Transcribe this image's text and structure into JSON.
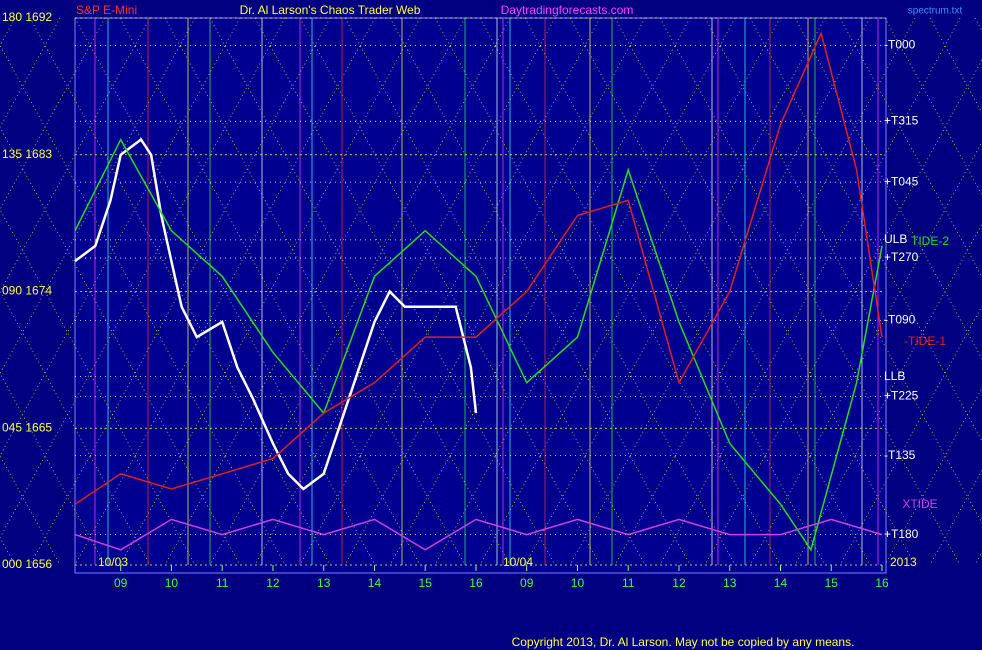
{
  "chart_data": {
    "type": "line",
    "title": "Dr. Al Larson's Chaos Trader Web",
    "website": "Daytradingforecasts.com",
    "file_label": "spectrum.txt",
    "copyright": "Copyright 2013, Dr. Al Larson. May not be copied by any means.",
    "date_labels": [
      "10/03",
      "10/04",
      "2013"
    ],
    "xlim": [
      0.1,
      16
    ],
    "xticks": [
      {
        "value": 1,
        "label": "09"
      },
      {
        "value": 2,
        "label": "10"
      },
      {
        "value": 3,
        "label": "11"
      },
      {
        "value": 4,
        "label": "12"
      },
      {
        "value": 5,
        "label": "13"
      },
      {
        "value": 6,
        "label": "14"
      },
      {
        "value": 7,
        "label": "15"
      },
      {
        "value": 8,
        "label": "16"
      },
      {
        "value": 9,
        "label": "09"
      },
      {
        "value": 10,
        "label": "10"
      },
      {
        "value": 11,
        "label": "11"
      },
      {
        "value": 12,
        "label": "12"
      },
      {
        "value": 13,
        "label": "13"
      },
      {
        "value": 14,
        "label": "14"
      },
      {
        "value": 15,
        "label": "15"
      },
      {
        "value": 16,
        "label": "16"
      }
    ],
    "ylim": [
      1656,
      1692
    ],
    "yticks": [
      {
        "value": 1692,
        "label": "180  1692"
      },
      {
        "value": 1683,
        "label": "135  1683"
      },
      {
        "value": 1674,
        "label": "090  1674"
      },
      {
        "value": 1665,
        "label": "045  1665"
      },
      {
        "value": 1656,
        "label": "000  1656"
      }
    ],
    "grid": true,
    "series": [
      {
        "name": "S&P E-Mini",
        "color": "#ffffff",
        "x": [
          0.1,
          0.5,
          0.8,
          1,
          1.4,
          1.6,
          1.8,
          2,
          2.2,
          2.5,
          3,
          3.3,
          3.6,
          4,
          4.3,
          4.6,
          5,
          5.3,
          5.6,
          6,
          6.3,
          6.6,
          7,
          7.3,
          7.6,
          7.9,
          8
        ],
        "values": [
          1676,
          1677,
          1680,
          1683,
          1684,
          1683,
          1679,
          1676,
          1673,
          1671,
          1672,
          1669,
          1667,
          1664,
          1662,
          1661,
          1662,
          1665,
          1668,
          1672,
          1674,
          1673,
          1673,
          1673,
          1673,
          1669,
          1666
        ]
      },
      {
        "name": "TIDE-2",
        "color": "#22dd22",
        "x": [
          0.1,
          1,
          2,
          3,
          4,
          5,
          6,
          7,
          8,
          9,
          10,
          11,
          12,
          13,
          14,
          14.6,
          15.5,
          16
        ],
        "values": [
          1678,
          1684,
          1678,
          1675,
          1670,
          1666,
          1675,
          1678,
          1675,
          1668,
          1671,
          1682,
          1672,
          1664,
          1660,
          1657,
          1668,
          1677
        ]
      },
      {
        "name": "-TIDE-1",
        "color": "#e02020",
        "x": [
          0.1,
          1,
          2,
          3,
          4,
          5,
          6,
          7,
          8,
          9,
          10,
          11,
          12,
          13,
          14,
          14.8,
          15.5,
          16
        ],
        "values": [
          1660,
          1662,
          1661,
          1662,
          1663,
          1666,
          1668,
          1671,
          1671,
          1674,
          1679,
          1680,
          1668,
          1674,
          1685,
          1691,
          1682,
          1671
        ]
      },
      {
        "name": "XTIDE",
        "color": "#d040e0",
        "x": [
          0.1,
          1,
          2,
          3,
          4,
          5,
          6,
          7,
          8,
          9,
          10,
          11,
          12,
          13,
          14,
          15,
          16
        ],
        "values": [
          1658,
          1657,
          1659,
          1658,
          1659,
          1658,
          1659,
          1657,
          1659,
          1658,
          1659,
          1658,
          1659,
          1658,
          1658,
          1659,
          1658
        ]
      }
    ],
    "levels": [
      {
        "label": "-T000",
        "value": 1690.2
      },
      {
        "label": "+T315",
        "value": 1685.2
      },
      {
        "label": "+T045",
        "value": 1681.2
      },
      {
        "label": "ULB",
        "value": 1677.4
      },
      {
        "label": "+T270",
        "value": 1676.2
      },
      {
        "label": "-T090",
        "value": 1672.1
      },
      {
        "label": "LLB",
        "value": 1668.4
      },
      {
        "label": "+T225",
        "value": 1667.1
      },
      {
        "label": "-T135",
        "value": 1663.2
      },
      {
        "label": "+T180",
        "value": 1658.0
      }
    ]
  }
}
